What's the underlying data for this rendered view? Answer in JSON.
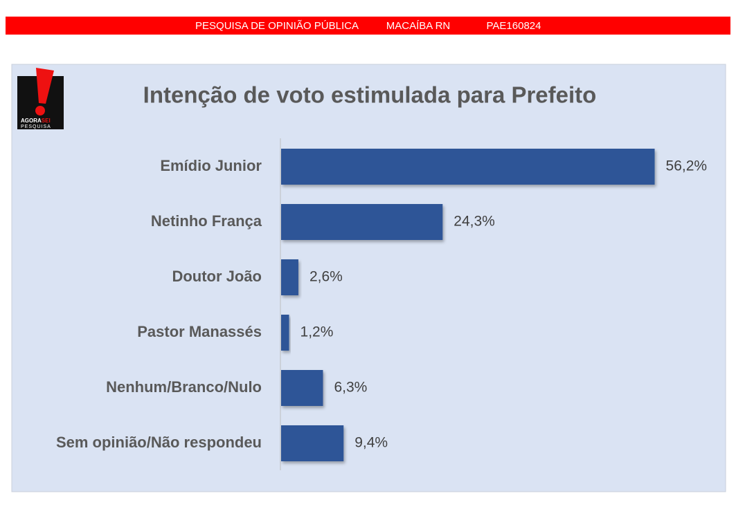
{
  "header": {
    "items": [
      "PESQUISA DE OPINIÃO PÚBLICA",
      "MACAÍBA RN",
      "PAE160824"
    ]
  },
  "logo": {
    "brand": "AGORA",
    "brand_accent": "SEI",
    "sub": "PESQUISA"
  },
  "chart_data": {
    "type": "hbar",
    "title": "Intenção de voto estimulada para Prefeito",
    "categories": [
      "Emídio Junior",
      "Netinho França",
      "Doutor João",
      "Pastor Manassés",
      "Nenhum/Branco/Nulo",
      "Sem opinião/Não respondeu"
    ],
    "values": [
      56.2,
      24.3,
      2.6,
      1.2,
      6.3,
      9.4
    ],
    "value_labels": [
      "56,2%",
      "24,3%",
      "2,6%",
      "1,2%",
      "6,3%",
      "9,4%"
    ],
    "color": "#2f5597",
    "xlim": [
      0,
      60
    ]
  }
}
